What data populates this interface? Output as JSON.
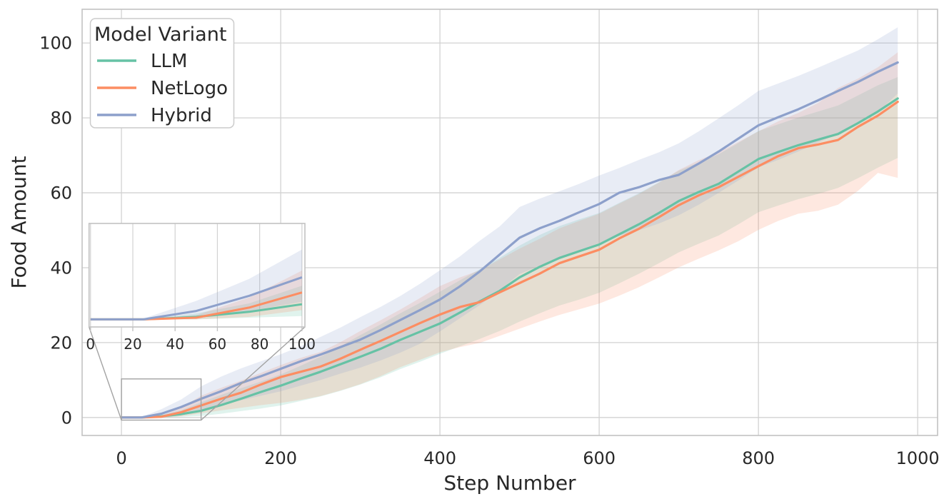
{
  "chart_data": {
    "type": "line",
    "title": "",
    "xlabel": "Step Number",
    "ylabel": "Food Amount",
    "legend_title": "Model Variant",
    "legend_position": "upper-left",
    "grid": true,
    "x_ticks": [
      0,
      200,
      400,
      600,
      800,
      1000
    ],
    "y_ticks": [
      0,
      20,
      40,
      60,
      80,
      100
    ],
    "xlim": [
      -49.4,
      1025.0
    ],
    "ylim": [
      -4.8,
      109.0
    ],
    "band_alpha": 0.2,
    "colors": {
      "text": "#282828",
      "grid": "#d2d2d2",
      "spine": "#c2c2c2",
      "legend_border": "#cccccc",
      "connector": "#a3a3a3",
      "background": "#ffffff"
    },
    "x": [
      0,
      25,
      50,
      75,
      100,
      125,
      150,
      175,
      200,
      225,
      250,
      275,
      300,
      325,
      350,
      375,
      400,
      425,
      450,
      475,
      500,
      525,
      550,
      575,
      600,
      625,
      650,
      675,
      700,
      725,
      750,
      775,
      800,
      825,
      850,
      875,
      900,
      925,
      950,
      975
    ],
    "series": [
      {
        "name": "LLM",
        "color": "#66c2a5",
        "mean": [
          0,
          0,
          0.3,
          0.9,
          1.8,
          3.3,
          5,
          6.8,
          8.5,
          10.4,
          12.2,
          14.2,
          16.2,
          18.3,
          20.7,
          22.9,
          25.1,
          28,
          31,
          33.8,
          37.4,
          40.2,
          42.6,
          44.4,
          46.2,
          48.9,
          51.6,
          54.6,
          57.8,
          60.2,
          62.4,
          65.7,
          69,
          70.9,
          72.7,
          74.2,
          75.7,
          78.6,
          81.7,
          85.2
        ],
        "lo": [
          0,
          0,
          0,
          0.2,
          0.4,
          1,
          1.7,
          2.4,
          3.2,
          4.4,
          5.6,
          7.1,
          8.8,
          10.7,
          12.9,
          14.9,
          17,
          19,
          21,
          23.1,
          25.6,
          27.8,
          29.9,
          31.5,
          33.3,
          35.8,
          38.4,
          41.2,
          44.1,
          46.4,
          48.6,
          51.6,
          54.8,
          56.6,
          58.3,
          59.7,
          61.3,
          63.9,
          66.7,
          69.3
        ],
        "hi": [
          0,
          0,
          0.7,
          1.9,
          4,
          6,
          7.8,
          9.6,
          11.5,
          13.8,
          16.2,
          19,
          22,
          24.8,
          27.8,
          30.6,
          33.6,
          36.6,
          39.6,
          42.6,
          45.9,
          48.7,
          51.1,
          52.9,
          54.6,
          57.3,
          59.9,
          62.8,
          65.9,
          68.1,
          70.3,
          73.3,
          76.5,
          78.3,
          80.1,
          81.7,
          83.3,
          86,
          88.7,
          90.9
        ]
      },
      {
        "name": "NetLogo",
        "color": "#fc8d62",
        "mean": [
          0,
          0,
          0.2,
          1.4,
          3.2,
          5,
          6.6,
          8.8,
          10.8,
          12.2,
          13.6,
          15.7,
          18.1,
          20.4,
          22.8,
          25.2,
          27.5,
          29.5,
          30.8,
          33.4,
          35.9,
          38.4,
          41.2,
          43,
          44.8,
          47.8,
          50.4,
          53.5,
          56.7,
          59.3,
          61.5,
          64.3,
          67.1,
          69.8,
          71.9,
          72.9,
          74.1,
          77.6,
          80.6,
          84.3
        ],
        "lo": [
          0,
          0,
          0,
          0.3,
          1.1,
          1.9,
          2.6,
          3.3,
          3.9,
          4.7,
          5.7,
          7.2,
          8.9,
          11,
          13.4,
          15.4,
          17.4,
          18.8,
          19.9,
          21.8,
          23.7,
          25.6,
          27.4,
          28.9,
          30.4,
          32.5,
          34.8,
          37.4,
          40.1,
          42.4,
          44.6,
          47.1,
          50.1,
          52.5,
          54.4,
          55.2,
          56.8,
          60.5,
          65.3,
          64
        ],
        "hi": [
          0,
          0,
          0.5,
          2.6,
          5.8,
          7.9,
          9.8,
          11.9,
          14,
          15.9,
          17.5,
          20.1,
          23.1,
          25.9,
          28.8,
          31.9,
          35.1,
          37.4,
          39.3,
          42.2,
          45.1,
          47.7,
          50.5,
          52.5,
          54.4,
          57.1,
          59.7,
          62.7,
          66.1,
          68.7,
          70.8,
          73.6,
          76.4,
          79.1,
          81.3,
          84,
          88,
          90.5,
          93.5,
          97.5
        ]
      },
      {
        "name": "Hybrid",
        "color": "#8da0cb",
        "mean": [
          0,
          0,
          1,
          2.8,
          5,
          7,
          9.2,
          11,
          13,
          15,
          16.8,
          18.8,
          20.8,
          23.3,
          26,
          28.7,
          31.5,
          35,
          39,
          43.5,
          48,
          50.5,
          52.5,
          54.8,
          57,
          60,
          61.5,
          63.4,
          64.8,
          67.8,
          71,
          74.5,
          78,
          80.2,
          82.3,
          84.7,
          87.2,
          89.6,
          92.3,
          94.8
        ],
        "lo": [
          0,
          0,
          0.3,
          1,
          2.1,
          3.3,
          4.6,
          5.8,
          7,
          8.5,
          10,
          11.7,
          13.3,
          15.2,
          17.3,
          19.7,
          23,
          26.5,
          30,
          34,
          38.3,
          40.5,
          42.5,
          44.5,
          46.6,
          48.5,
          50,
          51.8,
          54,
          56.8,
          60,
          63.3,
          66.8,
          68.8,
          71,
          73.4,
          75.8,
          78.3,
          81.5,
          86.5
        ],
        "hi": [
          0,
          0.1,
          2.2,
          4.8,
          8.3,
          10.9,
          13.1,
          15,
          16.9,
          19,
          21.5,
          24,
          26.8,
          29.5,
          32.4,
          35.7,
          39.3,
          43,
          47.2,
          51,
          56.2,
          58.4,
          60.4,
          62.4,
          64.6,
          66.6,
          68.8,
          70.8,
          73.2,
          76.4,
          79.9,
          83.4,
          87.2,
          89.2,
          91.2,
          93.4,
          95.7,
          98,
          101,
          104.2
        ]
      }
    ],
    "inset": {
      "x_ticks": [
        0,
        20,
        40,
        60,
        80,
        100
      ],
      "xlim": [
        -0.7,
        101.4
      ],
      "ylim": [
        -0.9,
        11.4
      ],
      "zoom_region_x": [
        0,
        100
      ]
    }
  }
}
